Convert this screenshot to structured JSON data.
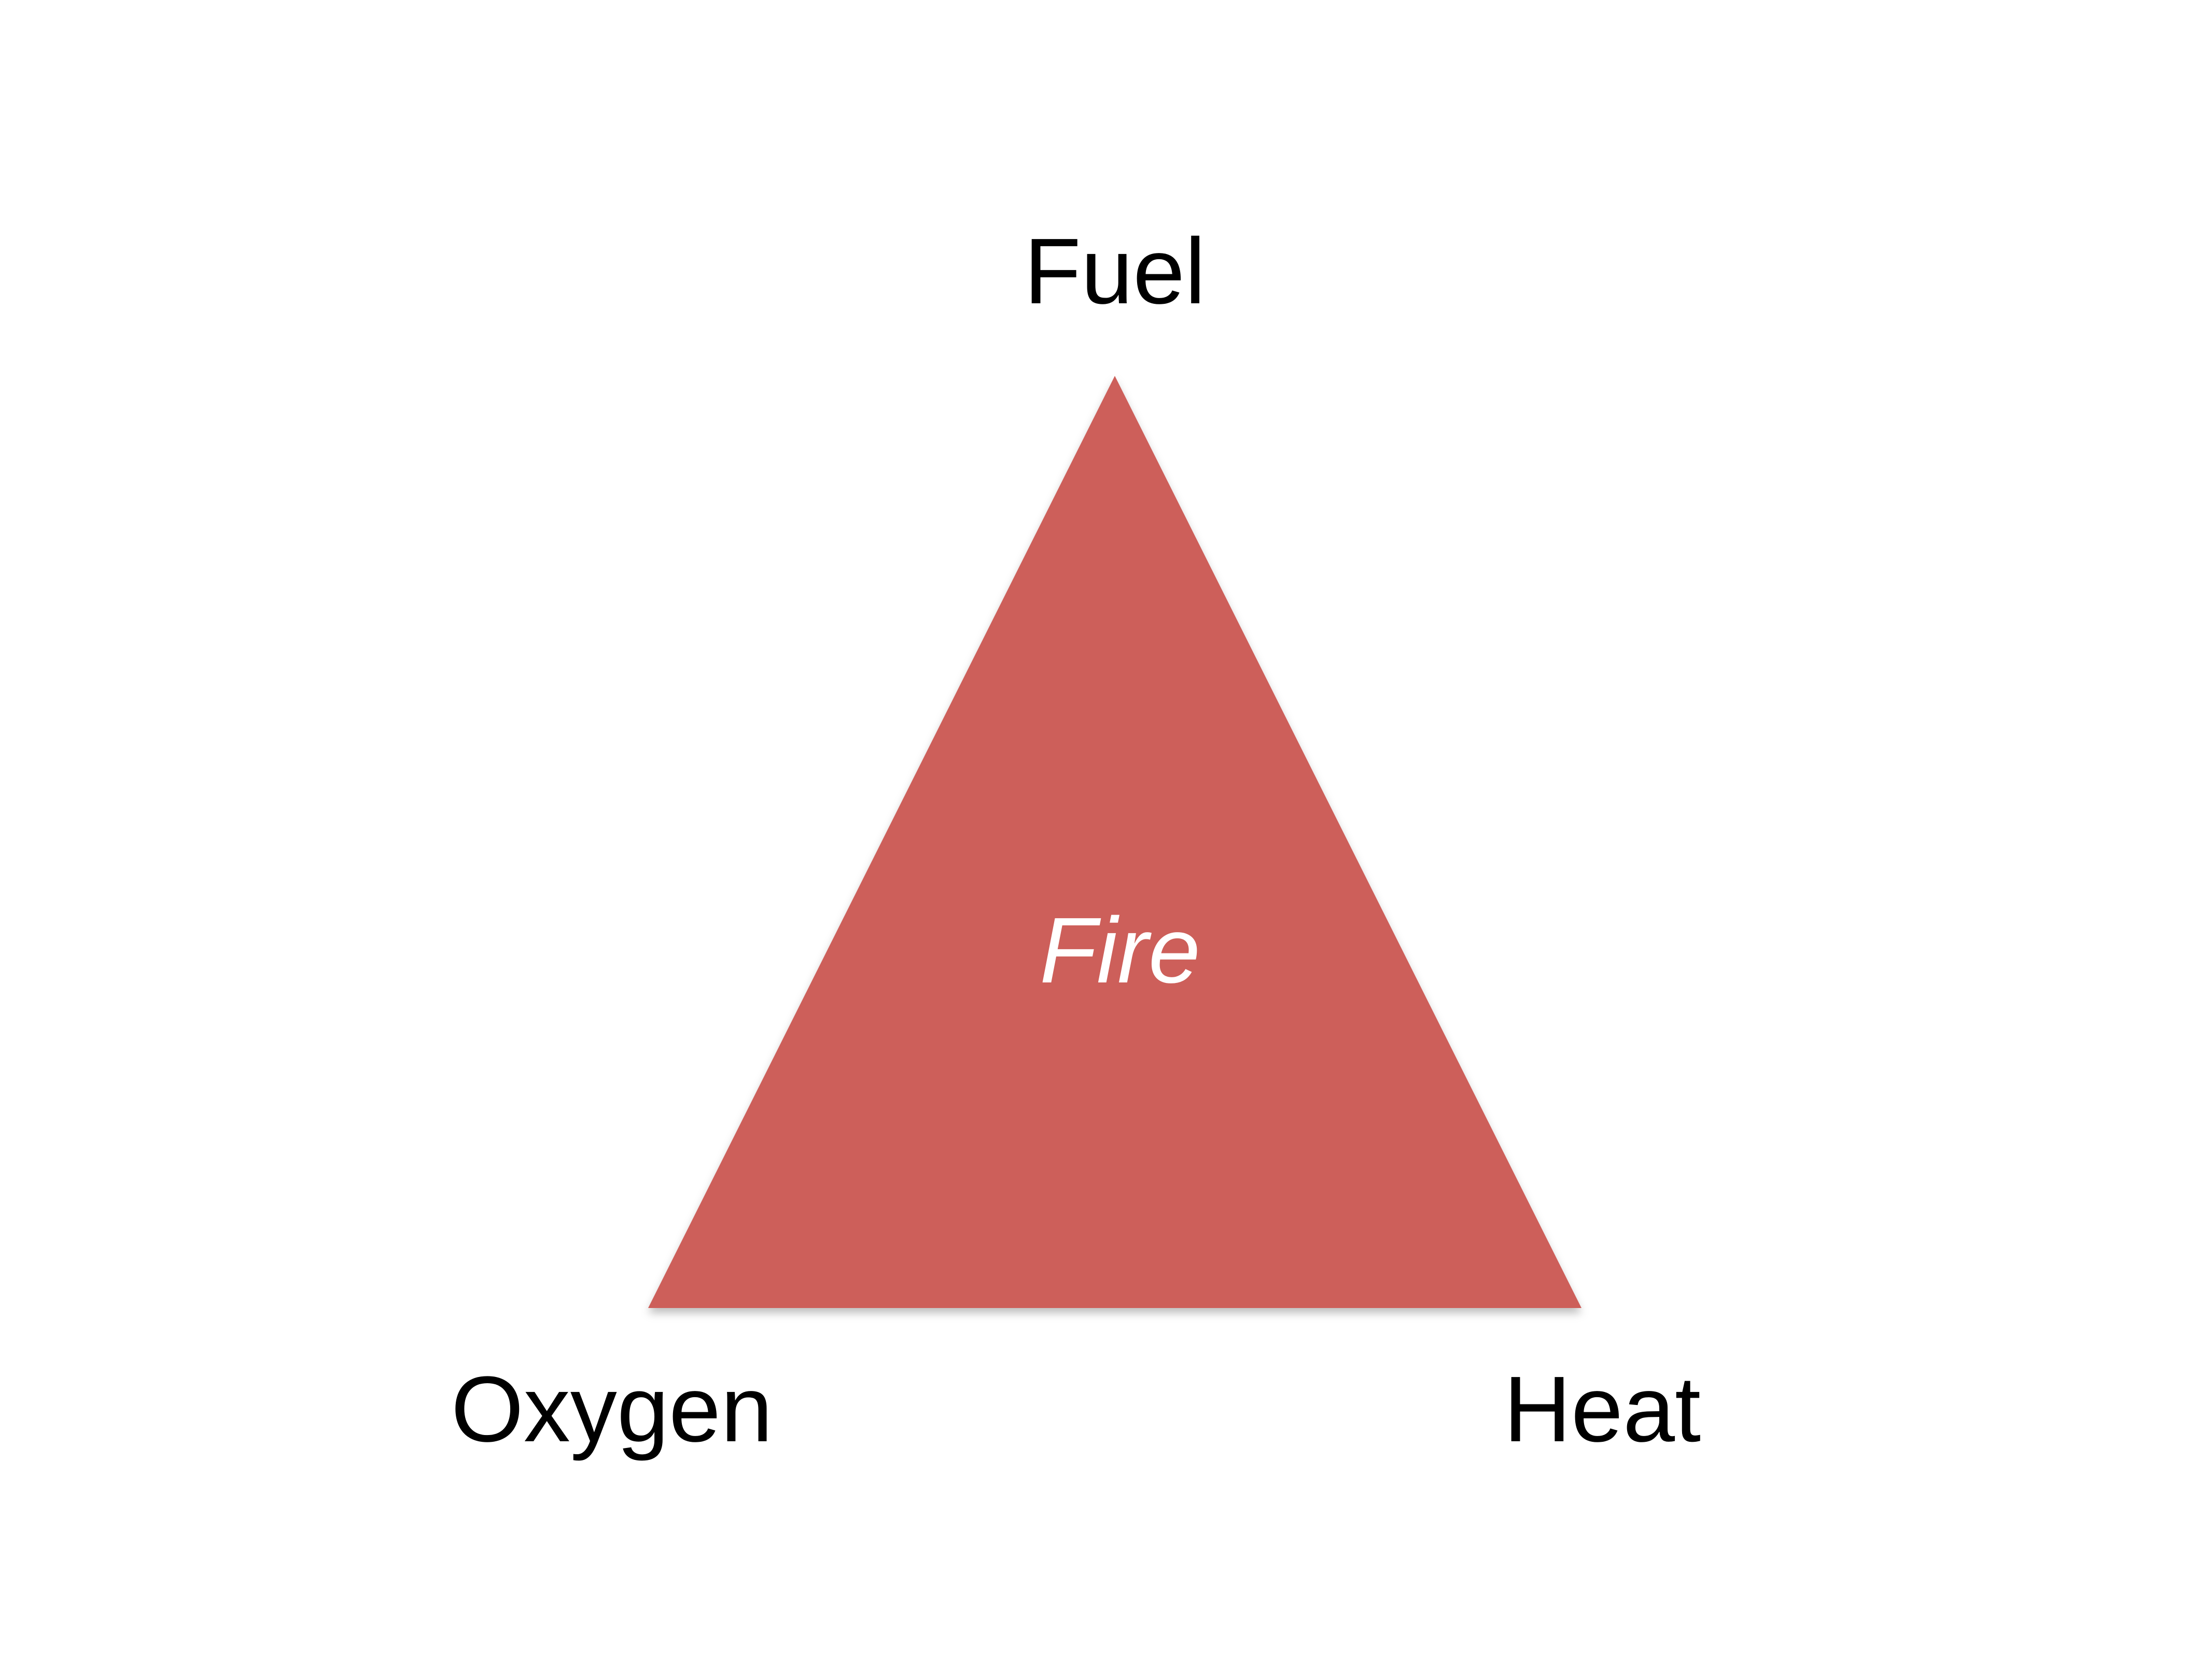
{
  "diagram": {
    "type": "fire-triangle",
    "center_label": "Fire",
    "vertices": {
      "top": "Fuel",
      "bottom_left": "Oxygen",
      "bottom_right": "Heat"
    }
  },
  "colors": {
    "background": "#ffffff",
    "triangle_fill": "#cd5f5a",
    "label_text": "#000000",
    "center_text": "#ffffff"
  }
}
